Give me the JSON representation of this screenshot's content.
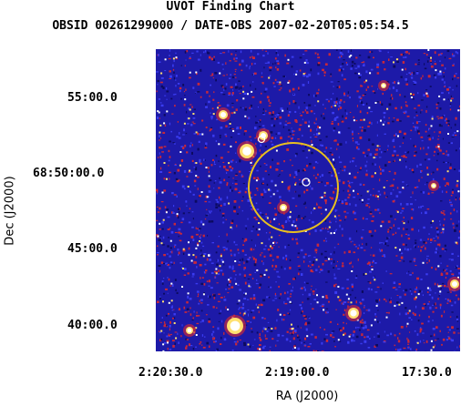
{
  "title": "UVOT Finding Chart",
  "subtitle": "OBSID 00261299000 / DATE-OBS 2007-02-20T05:05:54.5",
  "xaxis": {
    "label": "RA (J2000)",
    "ticks": [
      "2:20:30.0",
      "2:19:00.0",
      "17:30.0"
    ]
  },
  "yaxis": {
    "label": "Dec (J2000)",
    "ticks": [
      "55:00.0",
      "68:50:00.0",
      "45:00.0",
      "40:00.0"
    ]
  },
  "colors": {
    "background": "#1d1aa8",
    "noise_red": "#c8283a",
    "noise_blue": "#3a3cf0",
    "bright_star": "#ffffff",
    "star_halo": "#ffe070",
    "circle": "#e8c020"
  }
}
